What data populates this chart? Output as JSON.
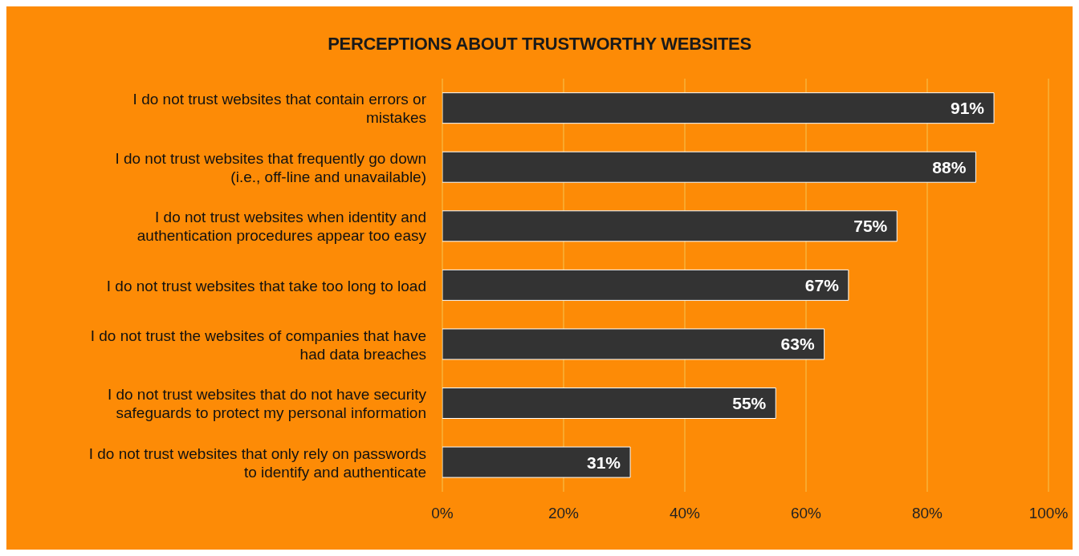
{
  "chart_data": {
    "type": "bar",
    "orientation": "horizontal",
    "title": "PERCEPTIONS ABOUT TRUSTWORTHY WEBSITES",
    "categories": [
      "I do not trust websites that contain errors or mistakes",
      "I do not trust websites that frequently go down (i.e., off-line and unavailable)",
      "I do not trust websites when identity and authentication procedures appear too easy",
      "I do not trust websites that take too long to load",
      "I do not trust the websites of companies that have had data breaches",
      "I do not trust websites that do not have security safeguards to protect my personal information",
      "I do not trust websites that only rely on passwords to identify and authenticate"
    ],
    "values": [
      91,
      88,
      75,
      67,
      63,
      55,
      31
    ],
    "value_labels": [
      "91%",
      "88%",
      "75%",
      "67%",
      "63%",
      "55%",
      "31%"
    ],
    "color": "#333333",
    "xlim": [
      0,
      100
    ],
    "xticks": [
      {
        "value": 0,
        "label": "0%"
      },
      {
        "value": 20,
        "label": "20%"
      },
      {
        "value": 40,
        "label": "40%"
      },
      {
        "value": 60,
        "label": "60%"
      },
      {
        "value": 80,
        "label": "80%"
      },
      {
        "value": 100,
        "label": "100%"
      }
    ],
    "grid": "x",
    "legend": false
  }
}
